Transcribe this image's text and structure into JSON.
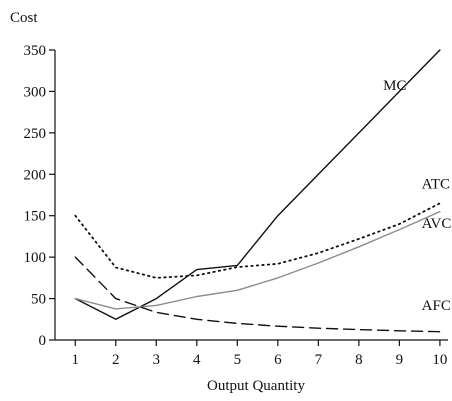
{
  "chart_data": {
    "type": "line",
    "ylabel": "Cost",
    "xlabel": "Output Quantity",
    "x": [
      1,
      2,
      3,
      4,
      5,
      6,
      7,
      8,
      9,
      10
    ],
    "xlim": [
      0.5,
      10.2
    ],
    "ylim": [
      0,
      350
    ],
    "yticks": [
      0,
      50,
      100,
      150,
      200,
      250,
      300,
      350
    ],
    "xticks": [
      1,
      2,
      3,
      4,
      5,
      6,
      7,
      8,
      9,
      10
    ],
    "grid": false,
    "legend": "none",
    "series": [
      {
        "name": "MC",
        "values": [
          50,
          25,
          50,
          85,
          90,
          150,
          200,
          250,
          300,
          350
        ],
        "color": "#111111",
        "style": "solid"
      },
      {
        "name": "ATC",
        "values": [
          150,
          87.5,
          75,
          78,
          88,
          92,
          105,
          122,
          140,
          165
        ],
        "color": "#111111",
        "style": "dotted"
      },
      {
        "name": "AVC",
        "values": [
          50,
          37.5,
          41.7,
          52.5,
          60,
          75,
          92.9,
          112.5,
          133.3,
          155
        ],
        "color": "#8c8c8c",
        "style": "solid"
      },
      {
        "name": "AFC",
        "values": [
          100,
          50,
          33.3,
          25,
          20,
          16.7,
          14.3,
          12.5,
          11.1,
          10
        ],
        "color": "#111111",
        "style": "dashed"
      }
    ]
  }
}
